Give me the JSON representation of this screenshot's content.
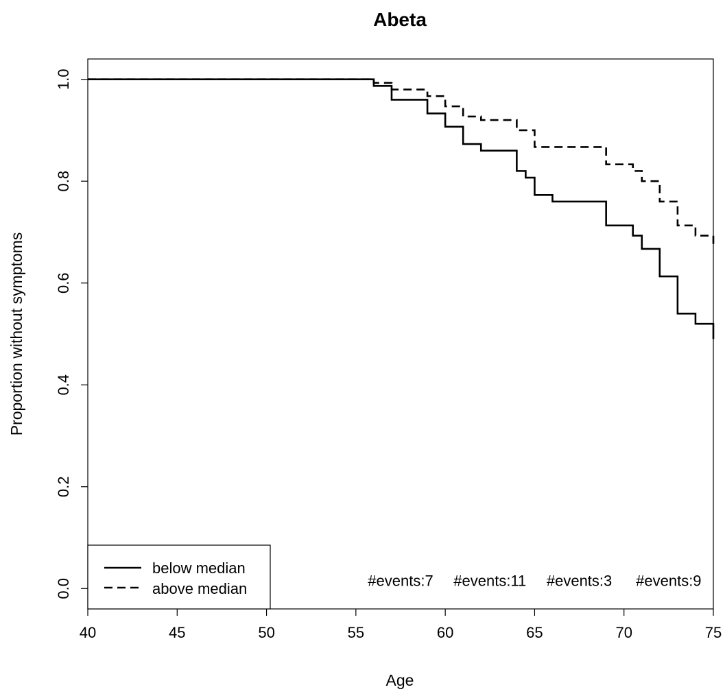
{
  "chart_data": {
    "type": "line",
    "subtype": "kaplan-meier step",
    "title": "Abeta",
    "xlabel": "Age",
    "ylabel": "Proportion without symptoms",
    "xlim": [
      40,
      75
    ],
    "ylim": [
      -0.04,
      1.04
    ],
    "x_ticks": [
      "40",
      "45",
      "50",
      "55",
      "60",
      "65",
      "70",
      "75"
    ],
    "y_ticks": [
      "0.0",
      "0.2",
      "0.4",
      "0.6",
      "0.8",
      "1.0"
    ],
    "grid": false,
    "legend_position": "bottom-left",
    "series": [
      {
        "name": "below median",
        "line_style": "solid",
        "x": [
          40,
          56,
          57,
          59,
          60,
          61,
          62,
          64,
          64.5,
          65,
          66,
          69,
          70.5,
          71,
          72,
          73,
          74,
          75
        ],
        "y": [
          1.0,
          0.987,
          0.96,
          0.933,
          0.907,
          0.873,
          0.86,
          0.82,
          0.807,
          0.773,
          0.76,
          0.713,
          0.693,
          0.667,
          0.613,
          0.54,
          0.52,
          0.49
        ]
      },
      {
        "name": "above median",
        "line_style": "dashed",
        "x": [
          40,
          56,
          57,
          59,
          60,
          61,
          62,
          64,
          65,
          69,
          70.5,
          71,
          72,
          73,
          74,
          75
        ],
        "y": [
          1.0,
          0.993,
          0.98,
          0.967,
          0.947,
          0.927,
          0.92,
          0.9,
          0.867,
          0.833,
          0.82,
          0.8,
          0.76,
          0.713,
          0.693,
          0.673
        ]
      }
    ],
    "annotations": [
      "#events:7",
      "#events:11",
      "#events:3",
      "#events:9"
    ],
    "annotation_x": [
      57.5,
      62.5,
      67.5,
      72.5
    ],
    "annotation_y": 0.005
  }
}
